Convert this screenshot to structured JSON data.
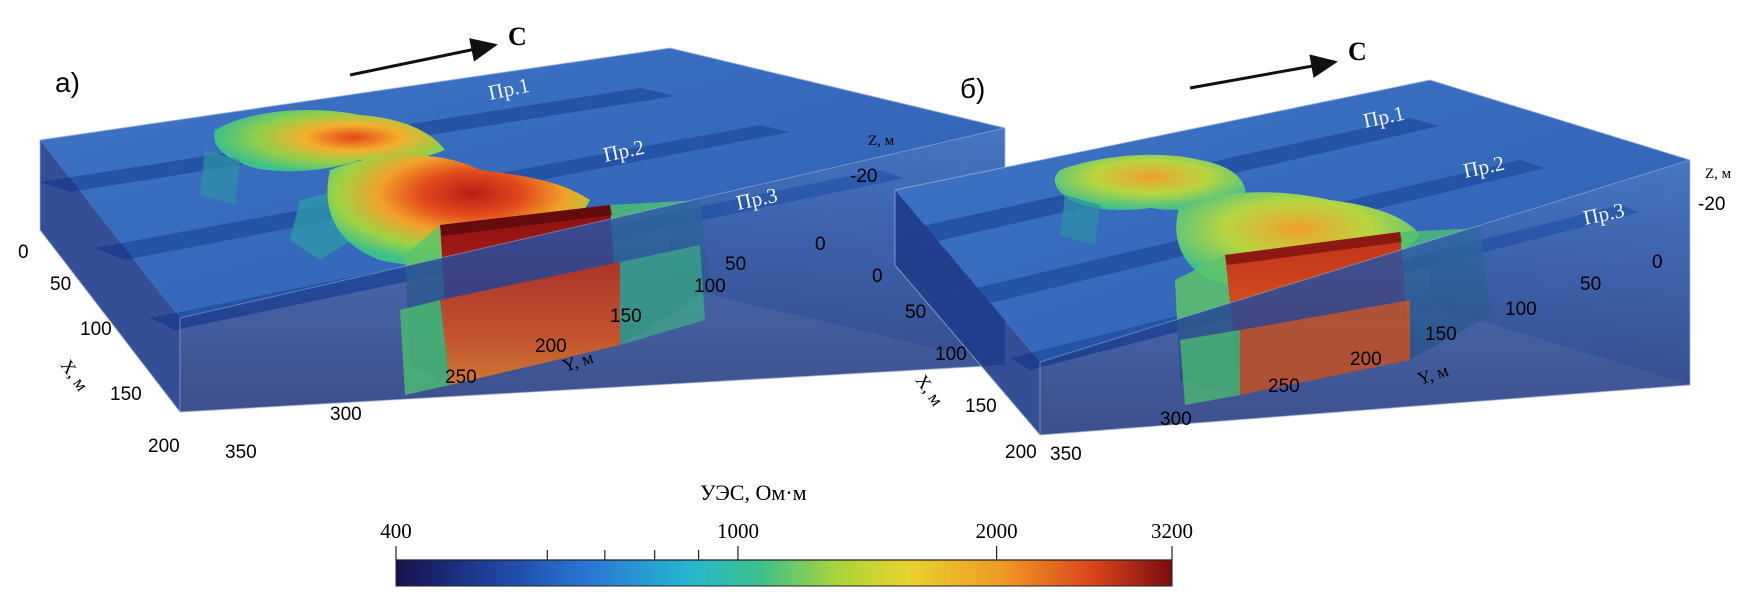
{
  "panels": [
    {
      "label": "а)",
      "north": "С",
      "profiles": [
        "Пр.1",
        "Пр.2",
        "Пр.3"
      ],
      "z_axis": {
        "label": "Z, м",
        "ticks": [
          "-20"
        ]
      },
      "y_axis": {
        "label": "Y, м",
        "ticks": [
          "0",
          "50",
          "100",
          "150",
          "200",
          "250",
          "300",
          "350"
        ]
      },
      "x_axis": {
        "label": "X, м",
        "ticks": [
          "0",
          "50",
          "100",
          "150",
          "200"
        ]
      }
    },
    {
      "label": "б)",
      "north": "С",
      "profiles": [
        "Пр.1",
        "Пр.2",
        "Пр.3"
      ],
      "z_axis": {
        "label": "Z, м",
        "ticks": [
          "-20"
        ]
      },
      "y_axis": {
        "label": "Y, м",
        "ticks": [
          "0",
          "50",
          "100",
          "150",
          "200",
          "250",
          "300",
          "350"
        ]
      },
      "x_axis": {
        "label": "X, м",
        "ticks": [
          "0",
          "50",
          "100",
          "150",
          "200"
        ]
      }
    }
  ],
  "colorbar": {
    "title": "УЭС, Ом·м",
    "scale": "log",
    "range": [
      400,
      3200
    ],
    "tick_labels": [
      "400",
      "1000",
      "2000",
      "3200"
    ],
    "minor_ticks": [
      600,
      700,
      800,
      900
    ],
    "colors": [
      "#16124a",
      "#1f3f9c",
      "#2a78d4",
      "#26b7cf",
      "#3ec08a",
      "#a8d53a",
      "#e8d22e",
      "#f09a25",
      "#d9431c",
      "#7a0c0e"
    ]
  }
}
